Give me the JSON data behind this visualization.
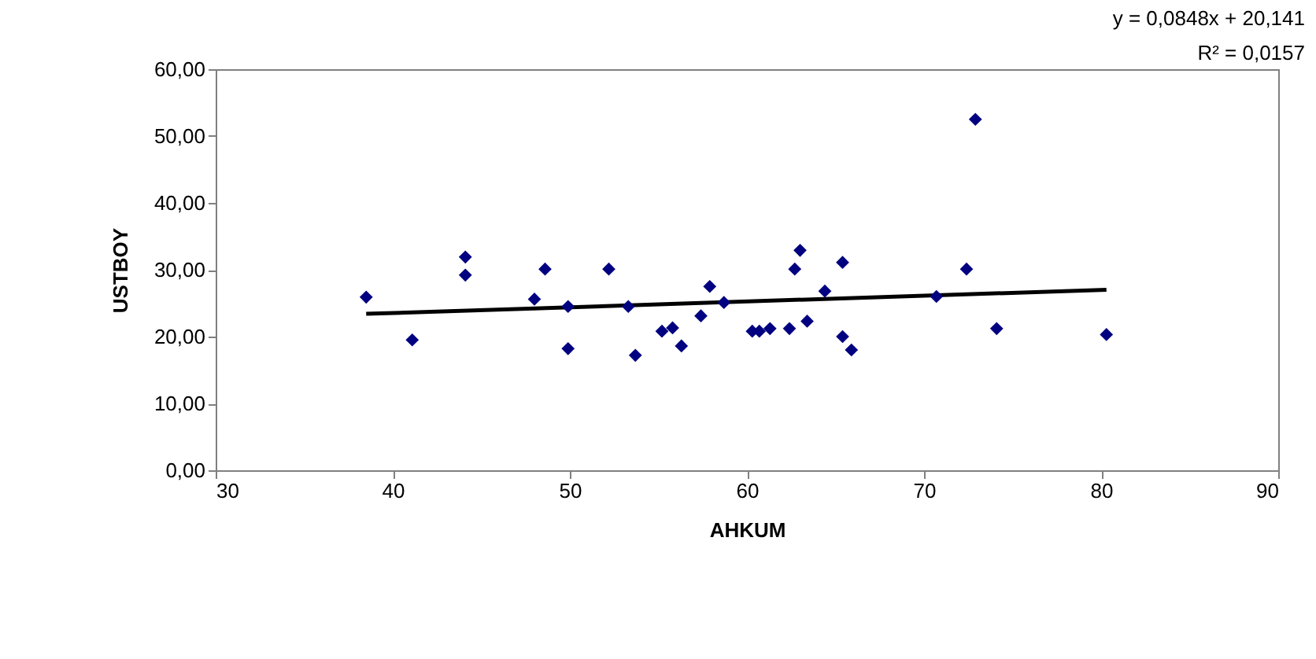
{
  "chart_data": {
    "type": "scatter",
    "xlabel": "AHKUM",
    "ylabel": "USTBOY",
    "xlim": [
      30,
      90
    ],
    "xticks": [
      30,
      40,
      50,
      60,
      70,
      80,
      90
    ],
    "ylim": [
      0,
      60
    ],
    "yticks": [
      {
        "value": 0,
        "label": "0,00"
      },
      {
        "value": 10,
        "label": "10,00"
      },
      {
        "value": 20,
        "label": "20,00"
      },
      {
        "value": 30,
        "label": "30,00"
      },
      {
        "value": 40,
        "label": "40,00"
      },
      {
        "value": 50,
        "label": "50,00"
      },
      {
        "value": 60,
        "label": "60,00"
      }
    ],
    "grid": false,
    "annotations": [
      "y = 0,0848x + 20,141",
      "R² = 0,0157"
    ],
    "series": [
      {
        "marker": "diamond",
        "color": "#000080",
        "x": [
          38.5,
          41.1,
          44.1,
          44.1,
          48.0,
          48.6,
          49.9,
          49.9,
          52.2,
          53.3,
          53.7,
          55.2,
          55.8,
          56.3,
          57.4,
          57.9,
          58.7,
          60.3,
          60.7,
          61.3,
          62.4,
          63.4,
          62.7,
          63.0,
          64.4,
          65.4,
          65.4,
          65.9,
          70.7,
          72.4,
          72.9,
          74.1,
          80.3
        ],
        "values": [
          25.9,
          19.5,
          31.9,
          29.2,
          25.6,
          30.1,
          24.5,
          18.2,
          30.1,
          24.5,
          17.2,
          20.8,
          21.3,
          18.6,
          23.1,
          27.5,
          25.1,
          20.8,
          20.8,
          21.2,
          21.2,
          22.3,
          30.1,
          32.9,
          26.8,
          31.1,
          20.0,
          18.0,
          26.0,
          30.1,
          52.5,
          21.2,
          20.3
        ]
      },
      {
        "type": "line",
        "marker": "none",
        "color": "#000000",
        "line_style": "solid",
        "x": [
          38.5,
          80.3
        ],
        "values": [
          23.4,
          27.0
        ]
      }
    ]
  }
}
